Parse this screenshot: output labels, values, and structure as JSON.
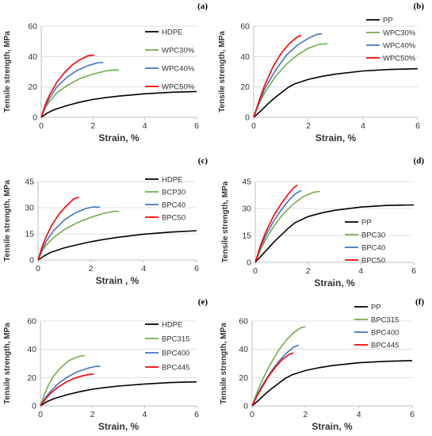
{
  "chart_data": [
    {
      "type": "line",
      "panel_label": "(a)",
      "xlabel": "Strain, %",
      "ylabel": "Tensile strength, MPa",
      "xlim": [
        0,
        6
      ],
      "ylim": [
        0,
        60
      ],
      "xticks": [
        "0",
        "2",
        "4",
        "6"
      ],
      "yticks": [
        "0",
        "20",
        "40",
        "60"
      ],
      "legend_position": "top-right",
      "series": [
        {
          "name": "HDPE",
          "color": "#000000",
          "x": [
            0,
            0.25,
            0.5,
            1,
            1.5,
            2,
            2.5,
            3,
            4,
            5,
            6
          ],
          "y": [
            0,
            3,
            5,
            7.8,
            10,
            11.8,
            13,
            14,
            15.5,
            16.5,
            17
          ]
        },
        {
          "name": "WPC30%",
          "color": "#70ad47",
          "x": [
            0,
            0.15,
            0.3,
            0.6,
            1,
            1.5,
            2,
            2.5,
            2.8,
            3.0
          ],
          "y": [
            0,
            6,
            10,
            16,
            21,
            25.5,
            28.5,
            30.5,
            31.2,
            31
          ]
        },
        {
          "name": "WPC40%",
          "color": "#4472c4",
          "x": [
            0,
            0.15,
            0.3,
            0.6,
            1,
            1.4,
            1.8,
            2.2,
            2.4
          ],
          "y": [
            0,
            7,
            12,
            20,
            26.5,
            31,
            34,
            36,
            36
          ]
        },
        {
          "name": "WPC50%",
          "color": "#ff0000",
          "x": [
            0,
            0.15,
            0.3,
            0.6,
            0.9,
            1.2,
            1.5,
            1.8,
            2.05
          ],
          "y": [
            0,
            8,
            14,
            23,
            29.5,
            34.5,
            38,
            40.5,
            41
          ]
        }
      ]
    },
    {
      "type": "line",
      "panel_label": "(b)",
      "xlabel": "Strain, %",
      "ylabel": "Tensile strength, MPa",
      "xlim": [
        0,
        6
      ],
      "ylim": [
        0,
        60
      ],
      "xticks": [
        "0",
        "2",
        "4",
        "6"
      ],
      "yticks": [
        "0",
        "20",
        "40",
        "60"
      ],
      "legend_position": "top-right",
      "series": [
        {
          "name": "PP",
          "color": "#000000",
          "x": [
            0,
            0.25,
            0.5,
            0.75,
            1,
            1.25,
            1.5,
            2,
            2.5,
            3,
            4,
            5,
            6
          ],
          "y": [
            0,
            4,
            8.5,
            12.5,
            16,
            19.5,
            22,
            25,
            27,
            28.5,
            30.5,
            31.5,
            32
          ]
        },
        {
          "name": "WPC30%",
          "color": "#70ad47",
          "x": [
            0,
            0.2,
            0.4,
            0.8,
            1.2,
            1.6,
            2,
            2.4,
            2.7
          ],
          "y": [
            0,
            9,
            16,
            27,
            35,
            41,
            45.5,
            48,
            48.5
          ]
        },
        {
          "name": "WPC40%",
          "color": "#4472c4",
          "x": [
            0,
            0.2,
            0.4,
            0.8,
            1.2,
            1.6,
            2,
            2.3,
            2.5
          ],
          "y": [
            0,
            10,
            18.5,
            31,
            41,
            47.5,
            52,
            54.5,
            55
          ]
        },
        {
          "name": "WPC50%",
          "color": "#ff0000",
          "x": [
            0,
            0.2,
            0.4,
            0.7,
            1,
            1.3,
            1.6,
            1.75
          ],
          "y": [
            0,
            11,
            21,
            33,
            42,
            48.5,
            53,
            54
          ]
        }
      ]
    },
    {
      "type": "line",
      "panel_label": "(c)",
      "xlabel": "Strain , %",
      "ylabel": "Tensile strength, MPa",
      "xlim": [
        0,
        6
      ],
      "ylim": [
        0,
        45
      ],
      "xticks": [
        "0",
        "2",
        "4",
        "6"
      ],
      "yticks": [
        "0",
        "15",
        "30",
        "45"
      ],
      "legend_position": "top-right",
      "series": [
        {
          "name": "HDPE",
          "color": "#000000",
          "x": [
            0,
            0.25,
            0.5,
            1,
            1.5,
            2,
            2.5,
            3,
            4,
            5,
            6
          ],
          "y": [
            0,
            2.5,
            4.5,
            7,
            8.8,
            10.5,
            11.8,
            13,
            14.8,
            16,
            16.8
          ]
        },
        {
          "name": "BCP30",
          "color": "#70ad47",
          "x": [
            0,
            0.15,
            0.3,
            0.6,
            1,
            1.5,
            2,
            2.5,
            2.9,
            3.05
          ],
          "y": [
            0,
            5,
            8.5,
            13,
            17.5,
            21.5,
            24.5,
            26.8,
            28,
            27.8
          ]
        },
        {
          "name": "BPC40",
          "color": "#4472c4",
          "x": [
            0,
            0.15,
            0.3,
            0.6,
            1,
            1.4,
            1.8,
            2.1,
            2.35
          ],
          "y": [
            0,
            6,
            10.5,
            17,
            23,
            27,
            29.5,
            30.5,
            30.2
          ]
        },
        {
          "name": "BPC50",
          "color": "#ff0000",
          "x": [
            0,
            0.15,
            0.3,
            0.5,
            0.8,
            1.1,
            1.35,
            1.55
          ],
          "y": [
            0,
            7.5,
            13,
            19.5,
            26.5,
            31.5,
            35,
            36
          ]
        }
      ]
    },
    {
      "type": "line",
      "panel_label": "(d)",
      "xlabel": "Strain, %",
      "ylabel": "Tensile strength, MPa",
      "xlim": [
        0,
        6
      ],
      "ylim": [
        0,
        45
      ],
      "xticks": [
        "0",
        "2",
        "4",
        "6"
      ],
      "yticks": [
        "0",
        "15",
        "30",
        "45"
      ],
      "legend_position": "bottom-right",
      "series": [
        {
          "name": "PP",
          "color": "#000000",
          "x": [
            0,
            0.25,
            0.5,
            0.75,
            1,
            1.25,
            1.5,
            2,
            2.5,
            3,
            4,
            5,
            6
          ],
          "y": [
            0,
            4,
            8,
            12,
            15.5,
            19,
            22,
            25.5,
            27.5,
            29,
            30.8,
            31.7,
            32
          ]
        },
        {
          "name": "BPC30",
          "color": "#70ad47",
          "x": [
            0,
            0.2,
            0.4,
            0.7,
            1,
            1.4,
            1.8,
            2.2,
            2.45
          ],
          "y": [
            0,
            7,
            13,
            20,
            26,
            32,
            36.5,
            39,
            39.5
          ]
        },
        {
          "name": "BPC40",
          "color": "#4472c4",
          "x": [
            0,
            0.2,
            0.4,
            0.7,
            1,
            1.3,
            1.55,
            1.75
          ],
          "y": [
            0,
            8.5,
            15,
            23,
            29.5,
            35,
            38.5,
            40
          ]
        },
        {
          "name": "BPC50",
          "color": "#ff0000",
          "x": [
            0,
            0.2,
            0.4,
            0.7,
            1,
            1.25,
            1.45,
            1.6
          ],
          "y": [
            0,
            9.5,
            17,
            26,
            33,
            38,
            41.5,
            43
          ]
        }
      ]
    },
    {
      "type": "line",
      "panel_label": "(e)",
      "xlabel": "Strain, %",
      "ylabel": "Tensile strength, MPa",
      "xlim": [
        0,
        6
      ],
      "ylim": [
        0,
        60
      ],
      "xticks": [
        "0",
        "2",
        "4",
        "6"
      ],
      "yticks": [
        "0",
        "20",
        "40",
        "60"
      ],
      "legend_position": "top-right",
      "series": [
        {
          "name": "HDPE",
          "color": "#000000",
          "x": [
            0,
            0.25,
            0.5,
            1,
            1.5,
            2,
            2.5,
            3,
            4,
            5,
            6
          ],
          "y": [
            0,
            3,
            5,
            7.8,
            10,
            11.8,
            13,
            14,
            15.5,
            16.5,
            17
          ]
        },
        {
          "name": "BPC315",
          "color": "#70ad47",
          "x": [
            0,
            0.15,
            0.3,
            0.5,
            0.8,
            1.1,
            1.4,
            1.6,
            1.7
          ],
          "y": [
            0,
            8,
            14.5,
            21,
            27.5,
            32,
            34.5,
            35.5,
            35.5
          ]
        },
        {
          "name": "BPC400",
          "color": "#4472c4",
          "x": [
            0,
            0.2,
            0.4,
            0.7,
            1,
            1.4,
            1.8,
            2.1,
            2.3
          ],
          "y": [
            0,
            6,
            10.5,
            16,
            20,
            24,
            26.5,
            27.8,
            28
          ]
        },
        {
          "name": "BPC445",
          "color": "#ff0000",
          "x": [
            0,
            0.2,
            0.4,
            0.7,
            1,
            1.3,
            1.6,
            1.9,
            2.05
          ],
          "y": [
            0,
            5,
            9,
            13.5,
            17,
            19.5,
            21.2,
            22.3,
            22.5
          ]
        }
      ]
    },
    {
      "type": "line",
      "panel_label": "(f)",
      "xlabel": "Strain, %",
      "ylabel": "Tensile strength, MPa",
      "xlim": [
        0,
        6
      ],
      "ylim": [
        0,
        60
      ],
      "xticks": [
        "0",
        "2",
        "4",
        "6"
      ],
      "yticks": [
        "0",
        "20",
        "40",
        "60"
      ],
      "legend_position": "top-right",
      "series": [
        {
          "name": "PP",
          "color": "#000000",
          "x": [
            0,
            0.25,
            0.5,
            0.75,
            1,
            1.25,
            1.5,
            2,
            2.5,
            3,
            4,
            5,
            6
          ],
          "y": [
            0,
            4,
            8.5,
            12.5,
            16,
            19.5,
            22,
            25,
            27,
            28.5,
            30.5,
            31.5,
            32
          ]
        },
        {
          "name": "BPC315",
          "color": "#70ad47",
          "x": [
            0,
            0.2,
            0.4,
            0.7,
            1,
            1.3,
            1.6,
            1.85,
            2.0
          ],
          "y": [
            0,
            10,
            19,
            30,
            39.5,
            47,
            52.5,
            55.5,
            56
          ]
        },
        {
          "name": "BPC400",
          "color": "#4472c4",
          "x": [
            0,
            0.2,
            0.4,
            0.7,
            1,
            1.3,
            1.55,
            1.75
          ],
          "y": [
            0,
            8,
            15,
            24,
            31.5,
            37.5,
            41.5,
            43
          ]
        },
        {
          "name": "BPC445",
          "color": "#ff0000",
          "x": [
            0,
            0.2,
            0.4,
            0.6,
            0.9,
            1.15,
            1.4,
            1.55
          ],
          "y": [
            0,
            7.5,
            14,
            20.5,
            28,
            33,
            36.5,
            37.5
          ]
        }
      ]
    }
  ]
}
